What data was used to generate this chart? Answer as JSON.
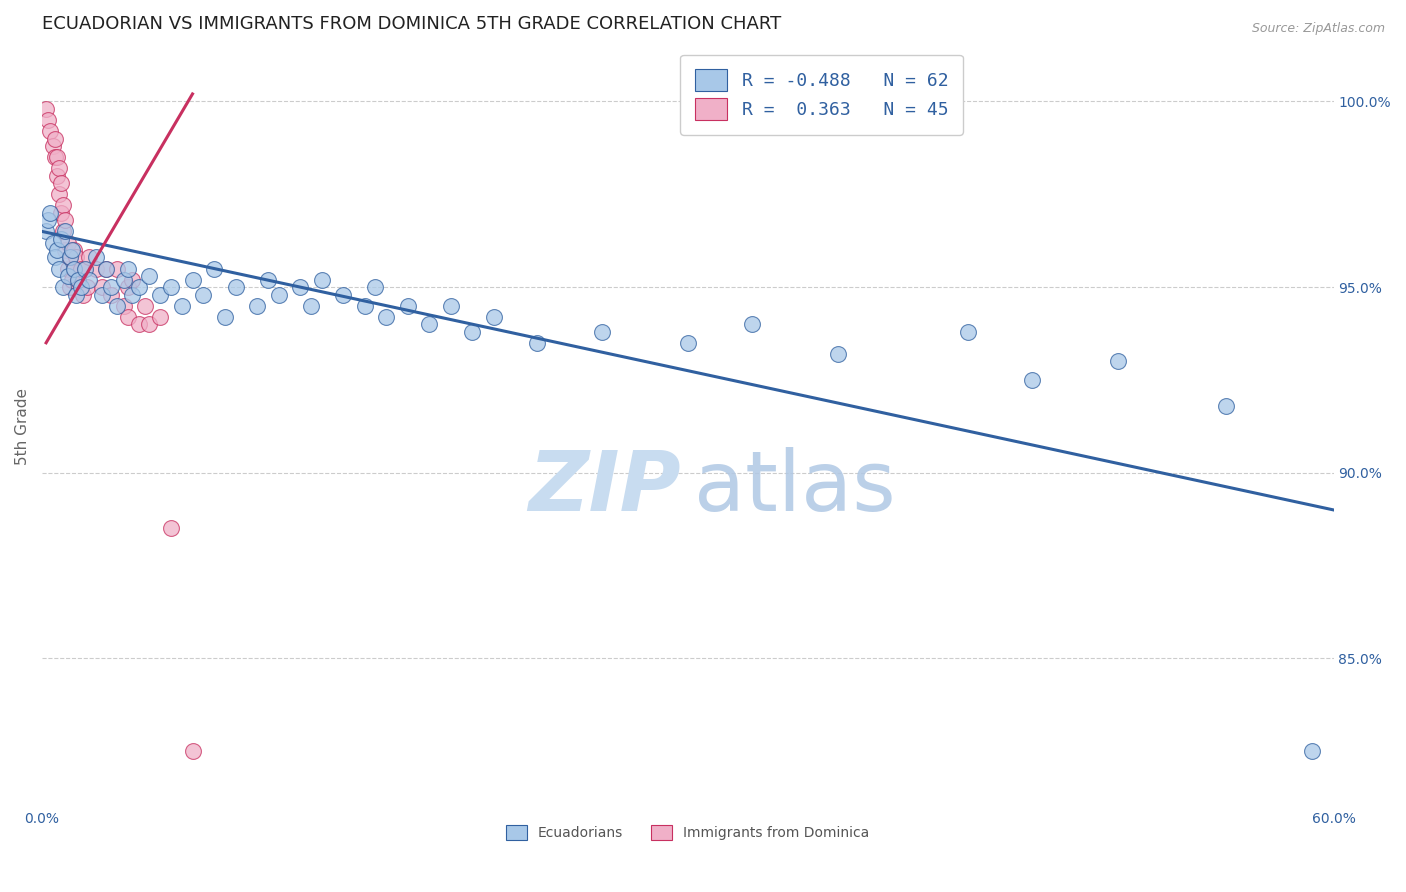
{
  "title": "ECUADORIAN VS IMMIGRANTS FROM DOMINICA 5TH GRADE CORRELATION CHART",
  "source": "Source: ZipAtlas.com",
  "ylabel": "5th Grade",
  "ytick_values": [
    100.0,
    95.0,
    90.0,
    85.0
  ],
  "xlim": [
    0.0,
    60.0
  ],
  "ylim": [
    81.0,
    101.5
  ],
  "blue_color": "#a8c8e8",
  "pink_color": "#f0b0c8",
  "blue_line_color": "#3060a0",
  "pink_line_color": "#c83060",
  "background_color": "#ffffff",
  "grid_color": "#cccccc",
  "blue_dots": [
    [
      0.2,
      96.5
    ],
    [
      0.3,
      96.8
    ],
    [
      0.4,
      97.0
    ],
    [
      0.5,
      96.2
    ],
    [
      0.6,
      95.8
    ],
    [
      0.7,
      96.0
    ],
    [
      0.8,
      95.5
    ],
    [
      0.9,
      96.3
    ],
    [
      1.0,
      95.0
    ],
    [
      1.1,
      96.5
    ],
    [
      1.2,
      95.3
    ],
    [
      1.3,
      95.8
    ],
    [
      1.4,
      96.0
    ],
    [
      1.5,
      95.5
    ],
    [
      1.6,
      94.8
    ],
    [
      1.7,
      95.2
    ],
    [
      1.8,
      95.0
    ],
    [
      2.0,
      95.5
    ],
    [
      2.2,
      95.2
    ],
    [
      2.5,
      95.8
    ],
    [
      2.8,
      94.8
    ],
    [
      3.0,
      95.5
    ],
    [
      3.2,
      95.0
    ],
    [
      3.5,
      94.5
    ],
    [
      3.8,
      95.2
    ],
    [
      4.0,
      95.5
    ],
    [
      4.2,
      94.8
    ],
    [
      4.5,
      95.0
    ],
    [
      5.0,
      95.3
    ],
    [
      5.5,
      94.8
    ],
    [
      6.0,
      95.0
    ],
    [
      6.5,
      94.5
    ],
    [
      7.0,
      95.2
    ],
    [
      7.5,
      94.8
    ],
    [
      8.0,
      95.5
    ],
    [
      8.5,
      94.2
    ],
    [
      9.0,
      95.0
    ],
    [
      10.0,
      94.5
    ],
    [
      10.5,
      95.2
    ],
    [
      11.0,
      94.8
    ],
    [
      12.0,
      95.0
    ],
    [
      12.5,
      94.5
    ],
    [
      13.0,
      95.2
    ],
    [
      14.0,
      94.8
    ],
    [
      15.0,
      94.5
    ],
    [
      15.5,
      95.0
    ],
    [
      16.0,
      94.2
    ],
    [
      17.0,
      94.5
    ],
    [
      18.0,
      94.0
    ],
    [
      19.0,
      94.5
    ],
    [
      20.0,
      93.8
    ],
    [
      21.0,
      94.2
    ],
    [
      23.0,
      93.5
    ],
    [
      26.0,
      93.8
    ],
    [
      30.0,
      93.5
    ],
    [
      33.0,
      94.0
    ],
    [
      37.0,
      93.2
    ],
    [
      43.0,
      93.8
    ],
    [
      46.0,
      92.5
    ],
    [
      50.0,
      93.0
    ],
    [
      55.0,
      91.8
    ],
    [
      59.0,
      82.5
    ]
  ],
  "pink_dots": [
    [
      0.2,
      99.8
    ],
    [
      0.3,
      99.5
    ],
    [
      0.4,
      99.2
    ],
    [
      0.5,
      98.8
    ],
    [
      0.6,
      98.5
    ],
    [
      0.6,
      99.0
    ],
    [
      0.7,
      98.0
    ],
    [
      0.7,
      98.5
    ],
    [
      0.8,
      97.5
    ],
    [
      0.8,
      98.2
    ],
    [
      0.9,
      97.0
    ],
    [
      0.9,
      97.8
    ],
    [
      1.0,
      96.5
    ],
    [
      1.0,
      97.2
    ],
    [
      1.1,
      96.0
    ],
    [
      1.1,
      96.8
    ],
    [
      1.2,
      95.5
    ],
    [
      1.2,
      96.2
    ],
    [
      1.3,
      95.0
    ],
    [
      1.3,
      95.8
    ],
    [
      1.4,
      95.2
    ],
    [
      1.5,
      95.5
    ],
    [
      1.5,
      96.0
    ],
    [
      1.6,
      95.8
    ],
    [
      1.7,
      95.2
    ],
    [
      1.8,
      95.5
    ],
    [
      1.9,
      94.8
    ],
    [
      2.0,
      95.5
    ],
    [
      2.1,
      95.0
    ],
    [
      2.2,
      95.8
    ],
    [
      2.5,
      95.5
    ],
    [
      2.8,
      95.0
    ],
    [
      3.0,
      95.5
    ],
    [
      3.2,
      94.8
    ],
    [
      3.5,
      95.5
    ],
    [
      3.8,
      94.5
    ],
    [
      4.0,
      95.0
    ],
    [
      4.0,
      94.2
    ],
    [
      4.2,
      95.2
    ],
    [
      4.5,
      94.0
    ],
    [
      4.8,
      94.5
    ],
    [
      5.0,
      94.0
    ],
    [
      5.5,
      94.2
    ],
    [
      6.0,
      88.5
    ],
    [
      7.0,
      82.5
    ]
  ],
  "blue_line": [
    [
      0.0,
      96.5
    ],
    [
      60.0,
      89.0
    ]
  ],
  "pink_line": [
    [
      0.2,
      93.5
    ],
    [
      7.0,
      100.2
    ]
  ],
  "watermark_zip_color": "#c8dcf0",
  "watermark_atlas_color": "#b0c8e4",
  "title_fontsize": 13,
  "axis_label_fontsize": 11,
  "tick_fontsize": 10,
  "legend_fontsize": 13
}
